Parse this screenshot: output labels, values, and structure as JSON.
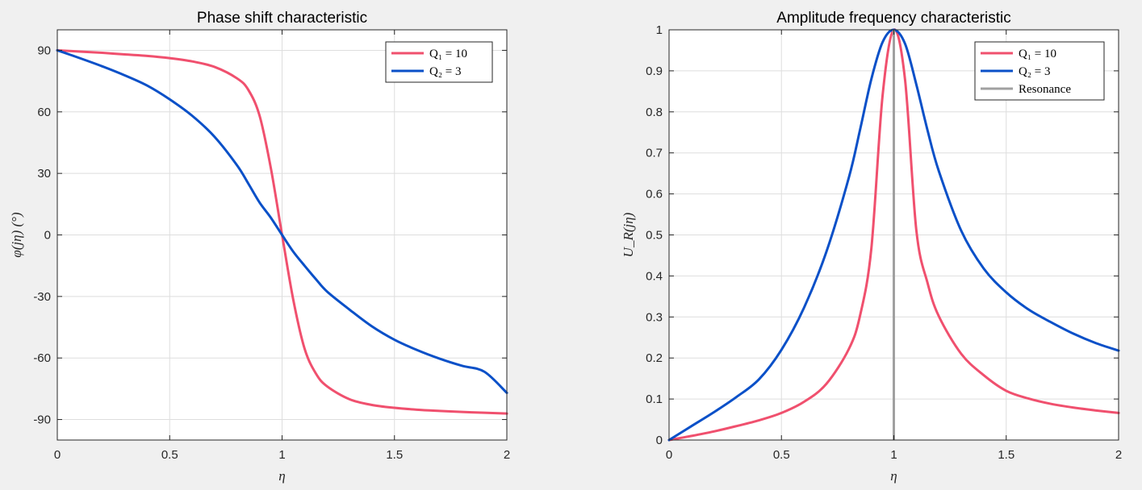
{
  "chart_data": [
    {
      "type": "line",
      "title": "Phase shift characteristic",
      "xlabel": "η",
      "ylabel": "φ(jη) (°)",
      "xlim": [
        0,
        2
      ],
      "ylim": [
        -100,
        100
      ],
      "xticks": [
        0,
        0.5,
        1,
        1.5,
        2
      ],
      "xtick_labels": [
        "0",
        "0.5",
        "1",
        "1.5",
        "2"
      ],
      "yticks": [
        90,
        60,
        30,
        0,
        -30,
        -60,
        -90
      ],
      "ytick_labels": [
        "90",
        "60",
        "30",
        "0",
        "-30",
        "-60",
        "-90"
      ],
      "grid": true,
      "legend_position": "top-right",
      "x": [
        0,
        0.1,
        0.2,
        0.3,
        0.4,
        0.5,
        0.6,
        0.7,
        0.8,
        0.85,
        0.9,
        0.95,
        1.0,
        1.05,
        1.1,
        1.15,
        1.2,
        1.3,
        1.4,
        1.5,
        1.6,
        1.7,
        1.8,
        1.9,
        2.0
      ],
      "series": [
        {
          "name": "Q₁ = 10",
          "color": "#f0506e",
          "values": [
            90,
            89.4,
            88.8,
            88.0,
            87.3,
            86.2,
            84.6,
            81.9,
            76.3,
            70.7,
            58.1,
            32.6,
            0,
            -31.7,
            -55.4,
            -67.5,
            -73.8,
            -80.1,
            -82.9,
            -84.3,
            -85.2,
            -85.8,
            -86.3,
            -86.7,
            -87.1
          ]
        },
        {
          "name": "Q₂ = 3",
          "color": "#0a50c8",
          "values": [
            90,
            86.2,
            82.2,
            77.8,
            72.8,
            66.1,
            58.1,
            47.8,
            33.9,
            25.0,
            15.8,
            8.4,
            0,
            -8.2,
            -15.0,
            -21.5,
            -27.6,
            -36.4,
            -44.6,
            -51.1,
            -56.1,
            -60.3,
            -63.8,
            -66.7,
            -77
          ]
        }
      ]
    },
    {
      "type": "line",
      "title": "Amplitude frequency characteristic",
      "xlabel": "η",
      "ylabel": "U_R(jη)",
      "xlim": [
        0,
        2
      ],
      "ylim": [
        0,
        1
      ],
      "xticks": [
        0,
        0.5,
        1,
        1.5,
        2
      ],
      "xtick_labels": [
        "0",
        "0.5",
        "1",
        "1.5",
        "2"
      ],
      "yticks": [
        0,
        0.1,
        0.2,
        0.3,
        0.4,
        0.5,
        0.6,
        0.7,
        0.8,
        0.9,
        1
      ],
      "ytick_labels": [
        "0",
        "0.1",
        "0.2",
        "0.3",
        "0.4",
        "0.5",
        "0.6",
        "0.7",
        "0.8",
        "0.9",
        "1"
      ],
      "grid": true,
      "legend_position": "top-right",
      "x": [
        0,
        0.1,
        0.2,
        0.3,
        0.4,
        0.5,
        0.6,
        0.7,
        0.8,
        0.85,
        0.9,
        0.95,
        1.0,
        1.05,
        1.1,
        1.15,
        1.2,
        1.3,
        1.4,
        1.5,
        1.6,
        1.7,
        1.8,
        1.9,
        2.0
      ],
      "series": [
        {
          "name": "Q₁ = 10",
          "color": "#f0506e",
          "values": [
            0,
            0.01,
            0.021,
            0.034,
            0.048,
            0.066,
            0.093,
            0.137,
            0.222,
            0.304,
            0.467,
            0.84,
            1.0,
            0.878,
            0.512,
            0.383,
            0.302,
            0.21,
            0.158,
            0.12,
            0.101,
            0.088,
            0.079,
            0.072,
            0.066
          ]
        },
        {
          "name": "Q₂ = 3",
          "color": "#0a50c8",
          "values": [
            0,
            0.034,
            0.068,
            0.105,
            0.148,
            0.22,
            0.322,
            0.459,
            0.64,
            0.757,
            0.88,
            0.97,
            1.0,
            0.966,
            0.867,
            0.755,
            0.656,
            0.51,
            0.418,
            0.36,
            0.318,
            0.287,
            0.259,
            0.236,
            0.218
          ]
        },
        {
          "name": "Resonance",
          "color": "#a0a0a0",
          "kind": "vline",
          "x": 1
        }
      ]
    }
  ]
}
